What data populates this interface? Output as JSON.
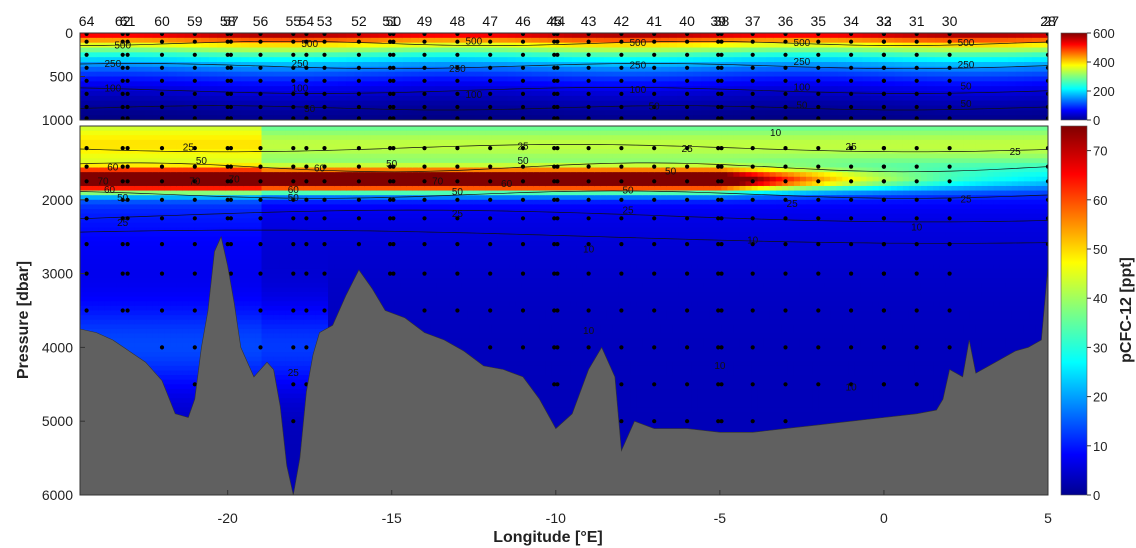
{
  "chart_data": {
    "type": "heatmap",
    "title": "",
    "xlabel": "Longitude [°E]",
    "ylabel": "Pressure [dbar]",
    "colorbar_label": "pCFC-12 [ppt]",
    "xlim": [
      -24.5,
      5
    ],
    "x_ticks": [
      -20,
      -15,
      -10,
      -5,
      0,
      5
    ],
    "upper_panel": {
      "ylim": [
        0,
        1000
      ],
      "y_ticks": [
        0,
        500,
        1000
      ],
      "clim": [
        0,
        600
      ],
      "cbar_ticks": [
        0,
        200,
        400,
        600
      ]
    },
    "lower_panel": {
      "ylim": [
        1000,
        6000
      ],
      "y_ticks": [
        2000,
        3000,
        4000,
        5000,
        6000
      ],
      "clim": [
        0,
        75
      ],
      "cbar_ticks": [
        0,
        10,
        20,
        30,
        40,
        50,
        60,
        70
      ]
    },
    "colormap": "jet",
    "bathymetry_color": "#606060",
    "stations": [
      {
        "label": "64",
        "lon": -24.3
      },
      {
        "label": "62",
        "lon": -23.2
      },
      {
        "label": "61",
        "lon": -23.05
      },
      {
        "label": "60",
        "lon": -22.0
      },
      {
        "label": "59",
        "lon": -21.0
      },
      {
        "label": "58",
        "lon": -20.0
      },
      {
        "label": "57",
        "lon": -19.9
      },
      {
        "label": "56",
        "lon": -19.0
      },
      {
        "label": "55",
        "lon": -18.0
      },
      {
        "label": "54",
        "lon": -17.6
      },
      {
        "label": "53",
        "lon": -17.05
      },
      {
        "label": "52",
        "lon": -16.0
      },
      {
        "label": "51",
        "lon": -15.05
      },
      {
        "label": "50",
        "lon": -14.95
      },
      {
        "label": "49",
        "lon": -14.0
      },
      {
        "label": "48",
        "lon": -13.0
      },
      {
        "label": "47",
        "lon": -12.0
      },
      {
        "label": "46",
        "lon": -11.0
      },
      {
        "label": "45",
        "lon": -10.05
      },
      {
        "label": "44",
        "lon": -9.95
      },
      {
        "label": "43",
        "lon": -9.0
      },
      {
        "label": "42",
        "lon": -8.0
      },
      {
        "label": "41",
        "lon": -7.0
      },
      {
        "label": "40",
        "lon": -6.0
      },
      {
        "label": "39",
        "lon": -5.05
      },
      {
        "label": "38",
        "lon": -4.95
      },
      {
        "label": "37",
        "lon": -4.0
      },
      {
        "label": "36",
        "lon": -3.0
      },
      {
        "label": "35",
        "lon": -2.0
      },
      {
        "label": "34",
        "lon": -1.0
      },
      {
        "label": "33",
        "lon": 0.0
      },
      {
        "label": "32",
        "lon": 0.0
      },
      {
        "label": "31",
        "lon": 1.0
      },
      {
        "label": "30",
        "lon": 2.0
      },
      {
        "label": "28",
        "lon": 5.0
      },
      {
        "label": "27",
        "lon": 5.1
      }
    ],
    "contour_labels_upper": [
      {
        "text": "500",
        "x": -23.2,
        "y": 150
      },
      {
        "text": "500",
        "x": -17.5,
        "y": 130
      },
      {
        "text": "500",
        "x": -12.5,
        "y": 100
      },
      {
        "text": "500",
        "x": -7.5,
        "y": 120
      },
      {
        "text": "500",
        "x": -2.5,
        "y": 120
      },
      {
        "text": "500",
        "x": 2.5,
        "y": 120
      },
      {
        "text": "250",
        "x": -23.5,
        "y": 360
      },
      {
        "text": "250",
        "x": -17.8,
        "y": 360
      },
      {
        "text": "250",
        "x": -13.0,
        "y": 420
      },
      {
        "text": "250",
        "x": -7.5,
        "y": 380
      },
      {
        "text": "250",
        "x": -2.5,
        "y": 340
      },
      {
        "text": "250",
        "x": 2.5,
        "y": 370
      },
      {
        "text": "100",
        "x": -23.5,
        "y": 640
      },
      {
        "text": "100",
        "x": -17.8,
        "y": 640
      },
      {
        "text": "100",
        "x": -12.5,
        "y": 720
      },
      {
        "text": "100",
        "x": -7.5,
        "y": 660
      },
      {
        "text": "100",
        "x": -2.5,
        "y": 630
      },
      {
        "text": "50",
        "x": 2.5,
        "y": 620
      },
      {
        "text": "50",
        "x": -17.5,
        "y": 880
      },
      {
        "text": "50",
        "x": -7.0,
        "y": 850
      },
      {
        "text": "50",
        "x": -2.5,
        "y": 840
      },
      {
        "text": "50",
        "x": 2.5,
        "y": 820
      }
    ],
    "contour_labels_lower": [
      {
        "text": "10",
        "x": -3.3,
        "y": 1100
      },
      {
        "text": "25",
        "x": -21.2,
        "y": 1300
      },
      {
        "text": "25",
        "x": -11.0,
        "y": 1280
      },
      {
        "text": "25",
        "x": -6.0,
        "y": 1320
      },
      {
        "text": "25",
        "x": -1.0,
        "y": 1290
      },
      {
        "text": "25",
        "x": 4.0,
        "y": 1360
      },
      {
        "text": "60",
        "x": -23.5,
        "y": 1570
      },
      {
        "text": "50",
        "x": -20.8,
        "y": 1480
      },
      {
        "text": "60",
        "x": -17.2,
        "y": 1580
      },
      {
        "text": "50",
        "x": -15.0,
        "y": 1520
      },
      {
        "text": "50",
        "x": -11.0,
        "y": 1480
      },
      {
        "text": "50",
        "x": -6.5,
        "y": 1620
      },
      {
        "text": "70",
        "x": -23.8,
        "y": 1760
      },
      {
        "text": "70",
        "x": -21.0,
        "y": 1760
      },
      {
        "text": "70",
        "x": -19.8,
        "y": 1730
      },
      {
        "text": "70",
        "x": -13.6,
        "y": 1760
      },
      {
        "text": "60",
        "x": -23.6,
        "y": 1870
      },
      {
        "text": "60",
        "x": -18.0,
        "y": 1870
      },
      {
        "text": "60",
        "x": -11.5,
        "y": 1790
      },
      {
        "text": "50",
        "x": -23.2,
        "y": 1980
      },
      {
        "text": "50",
        "x": -18.0,
        "y": 1980
      },
      {
        "text": "50",
        "x": -13.0,
        "y": 1900
      },
      {
        "text": "50",
        "x": -7.8,
        "y": 1880
      },
      {
        "text": "25",
        "x": -23.2,
        "y": 2320
      },
      {
        "text": "25",
        "x": -13.0,
        "y": 2200
      },
      {
        "text": "25",
        "x": -7.8,
        "y": 2150
      },
      {
        "text": "25",
        "x": -2.8,
        "y": 2060
      },
      {
        "text": "25",
        "x": 2.5,
        "y": 2000
      },
      {
        "text": "10",
        "x": -9.0,
        "y": 2680
      },
      {
        "text": "10",
        "x": -4.0,
        "y": 2560
      },
      {
        "text": "10",
        "x": 1.0,
        "y": 2380
      },
      {
        "text": "10",
        "x": -9.0,
        "y": 3780
      },
      {
        "text": "10",
        "x": -5.0,
        "y": 4260
      },
      {
        "text": "10",
        "x": -1.0,
        "y": 4550
      },
      {
        "text": "25",
        "x": -18.0,
        "y": 4350
      }
    ]
  }
}
